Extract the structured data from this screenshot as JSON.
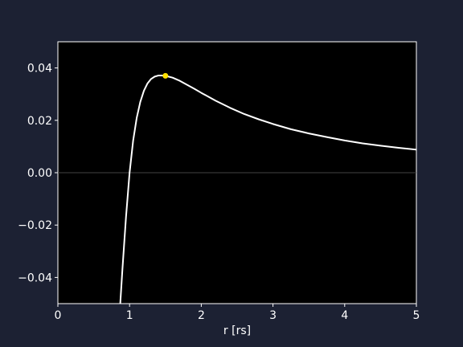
{
  "chart_data": {
    "type": "line",
    "title": "",
    "xlabel": "r [rs]",
    "ylabel": "",
    "xlim": [
      0,
      5
    ],
    "ylim": [
      -0.05,
      0.05
    ],
    "xticks": [
      0,
      1,
      2,
      3,
      4,
      5
    ],
    "xtick_labels": [
      "0",
      "1",
      "2",
      "3",
      "4",
      "5"
    ],
    "yticks": [
      -0.04,
      -0.02,
      0.0,
      0.02,
      0.04
    ],
    "ytick_labels": [
      "−0.04",
      "−0.02",
      "0.00",
      "0.02",
      "0.04"
    ],
    "grid": false,
    "zero_line": true,
    "colors": {
      "figure_background": "#1c2133",
      "plot_background": "#000000",
      "line": "#ffffff",
      "marker": "#ffe000",
      "zero_line": "#444444"
    },
    "series": [
      {
        "x": [
          0.87,
          0.9,
          0.95,
          1.0,
          1.05,
          1.1,
          1.15,
          1.2,
          1.25,
          1.3,
          1.35,
          1.4,
          1.45,
          1.5,
          1.6,
          1.7,
          1.8,
          1.9,
          2.0,
          2.2,
          2.4,
          2.6,
          2.8,
          3.0,
          3.25,
          3.5,
          3.75,
          4.0,
          4.25,
          4.5,
          4.75,
          5.0
        ],
        "y": [
          -0.05,
          -0.037,
          -0.017,
          0.0,
          0.0123,
          0.021,
          0.0271,
          0.0313,
          0.0341,
          0.0358,
          0.0367,
          0.0371,
          0.0371,
          0.037,
          0.0363,
          0.0351,
          0.0336,
          0.0321,
          0.0305,
          0.0275,
          0.0248,
          0.0224,
          0.0204,
          0.0186,
          0.0166,
          0.015,
          0.0136,
          0.0123,
          0.0112,
          0.0103,
          0.0095,
          0.0088
        ]
      }
    ],
    "markers": [
      {
        "x": 1.5,
        "y": 0.037
      }
    ]
  }
}
